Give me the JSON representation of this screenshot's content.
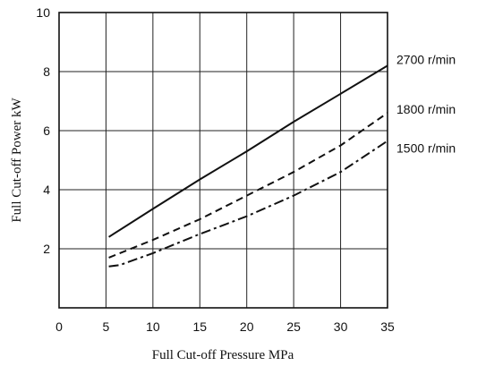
{
  "chart_data": {
    "type": "line",
    "title": "",
    "xlabel": "Full Cut-off  Pressure  MPa",
    "ylabel": "Full Cut-off Power  kW",
    "xlim": [
      0,
      35
    ],
    "ylim": [
      0,
      10
    ],
    "xticks": [
      "0",
      "5",
      "10",
      "15",
      "20",
      "25",
      "30",
      "35"
    ],
    "yticks": [
      "2",
      "4",
      "6",
      "8",
      "10"
    ],
    "grid": true,
    "series": [
      {
        "name": "2700 r/min",
        "style": "solid",
        "x": [
          5.3,
          10,
          15,
          20,
          25,
          30,
          35
        ],
        "y": [
          2.4,
          3.35,
          4.35,
          5.3,
          6.3,
          7.25,
          8.2
        ]
      },
      {
        "name": "1800 r/min",
        "style": "dashed",
        "x": [
          5.3,
          10,
          15,
          20,
          25,
          30,
          35
        ],
        "y": [
          1.7,
          2.3,
          3.0,
          3.8,
          4.6,
          5.5,
          6.6
        ]
      },
      {
        "name": "1500 r/min",
        "style": "dashdot",
        "x": [
          5.3,
          6.5,
          10,
          15,
          20,
          25,
          30,
          35
        ],
        "y": [
          1.4,
          1.45,
          1.85,
          2.5,
          3.1,
          3.8,
          4.6,
          5.65
        ]
      }
    ]
  }
}
